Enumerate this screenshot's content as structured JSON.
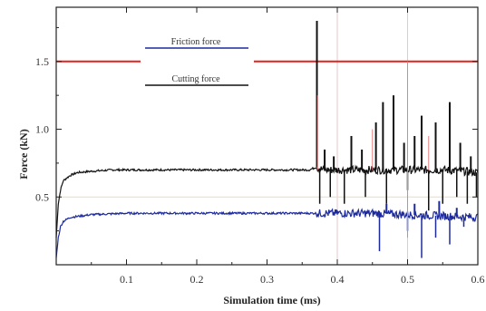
{
  "chart_data": {
    "type": "line",
    "xlabel": "Simulation time (ms)",
    "ylabel": "Force (kN)",
    "xlim": [
      0,
      0.6
    ],
    "ylim": [
      0,
      1.9
    ],
    "x_ticks": [
      0.1,
      0.2,
      0.3,
      0.4,
      0.5,
      0.6
    ],
    "x_tick_labels": [
      "0.1",
      "0.2",
      "0.3",
      "0.4",
      "0.5",
      "0.6"
    ],
    "y_ticks": [
      0.5,
      1.0,
      1.5
    ],
    "y_tick_labels": [
      "0.5",
      "1.0",
      "1.5"
    ],
    "reference_line": {
      "y": 1.5,
      "color": "#e8201c"
    },
    "legend": {
      "placement": "top-center",
      "entries": [
        {
          "label": "Friction force",
          "color": "#1c2a9e"
        },
        {
          "label": "Cutting force",
          "color": "#111111"
        }
      ]
    },
    "series": [
      {
        "name": "Cutting force",
        "color": "#111111",
        "points": [
          [
            0,
            0.2
          ],
          [
            0.003,
            0.45
          ],
          [
            0.006,
            0.55
          ],
          [
            0.01,
            0.62
          ],
          [
            0.02,
            0.66
          ],
          [
            0.03,
            0.68
          ],
          [
            0.05,
            0.69
          ],
          [
            0.08,
            0.7
          ],
          [
            0.1,
            0.7
          ],
          [
            0.15,
            0.7
          ],
          [
            0.2,
            0.7
          ],
          [
            0.25,
            0.7
          ],
          [
            0.3,
            0.7
          ],
          [
            0.34,
            0.7
          ],
          [
            0.36,
            0.7
          ],
          [
            0.37,
            0.72
          ],
          [
            0.38,
            0.7
          ],
          [
            0.4,
            0.7
          ],
          [
            0.43,
            0.7
          ],
          [
            0.46,
            0.7
          ],
          [
            0.5,
            0.7
          ],
          [
            0.55,
            0.7
          ],
          [
            0.58,
            0.69
          ],
          [
            0.6,
            0.68
          ]
        ],
        "spikes": [
          [
            0.371,
            1.8
          ],
          [
            0.382,
            0.85
          ],
          [
            0.395,
            0.8
          ],
          [
            0.42,
            0.95
          ],
          [
            0.435,
            0.85
          ],
          [
            0.455,
            1.05
          ],
          [
            0.465,
            1.2
          ],
          [
            0.48,
            1.25
          ],
          [
            0.495,
            0.9
          ],
          [
            0.51,
            0.95
          ],
          [
            0.52,
            1.1
          ],
          [
            0.54,
            1.05
          ],
          [
            0.56,
            1.2
          ],
          [
            0.575,
            0.9
          ],
          [
            0.59,
            0.8
          ]
        ],
        "dips": [
          [
            0.375,
            0.45
          ],
          [
            0.39,
            0.5
          ],
          [
            0.41,
            0.45
          ],
          [
            0.44,
            0.5
          ],
          [
            0.47,
            0.45
          ],
          [
            0.5,
            0.55
          ],
          [
            0.53,
            0.4
          ],
          [
            0.55,
            0.45
          ],
          [
            0.57,
            0.5
          ],
          [
            0.585,
            0.45
          ],
          [
            0.598,
            0.5
          ]
        ]
      },
      {
        "name": "Friction force",
        "color": "#1c2a9e",
        "points": [
          [
            0,
            0.05
          ],
          [
            0.003,
            0.2
          ],
          [
            0.006,
            0.28
          ],
          [
            0.01,
            0.32
          ],
          [
            0.02,
            0.35
          ],
          [
            0.05,
            0.37
          ],
          [
            0.1,
            0.38
          ],
          [
            0.15,
            0.38
          ],
          [
            0.2,
            0.38
          ],
          [
            0.25,
            0.38
          ],
          [
            0.3,
            0.38
          ],
          [
            0.36,
            0.38
          ],
          [
            0.4,
            0.38
          ],
          [
            0.45,
            0.38
          ],
          [
            0.5,
            0.37
          ],
          [
            0.55,
            0.36
          ],
          [
            0.6,
            0.35
          ]
        ],
        "dips": [
          [
            0.46,
            0.1
          ],
          [
            0.5,
            0.25
          ],
          [
            0.52,
            0.05
          ],
          [
            0.54,
            0.2
          ],
          [
            0.56,
            0.15
          ],
          [
            0.58,
            0.28
          ]
        ],
        "spikes": [
          [
            0.47,
            0.45
          ],
          [
            0.51,
            0.45
          ],
          [
            0.545,
            0.47
          ],
          [
            0.57,
            0.42
          ]
        ]
      }
    ]
  }
}
